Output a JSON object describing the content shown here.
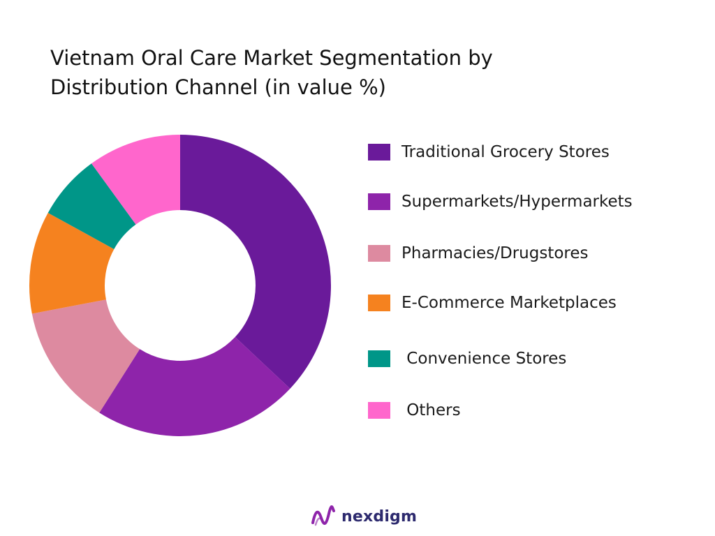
{
  "chart_data": {
    "type": "pie",
    "title_lines": [
      "Vietnam Oral Care Market Segmentation by",
      "Distribution Channel (in value %)"
    ],
    "donut": true,
    "legend_position": "right",
    "slices": [
      {
        "label": "Traditional Grocery Stores",
        "value": 37,
        "color": "#6a1a9a"
      },
      {
        "label": "Supermarkets/Hypermarkets",
        "value": 22,
        "color": "#8e24aa"
      },
      {
        "label": "Pharmacies/Drugstores",
        "value": 13,
        "color": "#dd8aa0"
      },
      {
        "label": "E-Commerce Marketplaces",
        "value": 11,
        "color": "#f5821f"
      },
      {
        "label": "Convenience Stores",
        "value": 7,
        "color": "#009688"
      },
      {
        "label": "Others",
        "value": 10,
        "color": "#ff66cc"
      }
    ]
  },
  "legend_labels": [
    "Traditional Grocery Stores",
    "Supermarkets/Hypermarkets",
    "Pharmacies/Drugstores",
    "E-Commerce Marketplaces",
    " Convenience Stores",
    " Others"
  ],
  "brand": {
    "name": "nexdigm",
    "color": "#2d2a6e",
    "mark_color": "#8e24aa",
    "icon": "nexdigm-logo-icon"
  }
}
